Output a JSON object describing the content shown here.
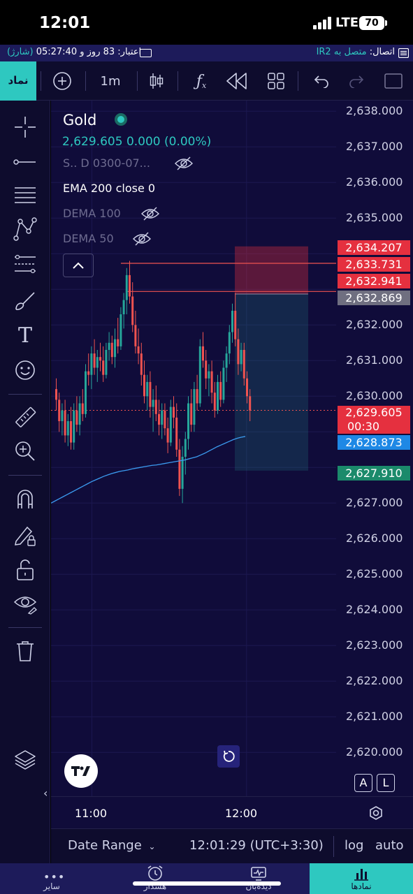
{
  "status_bar": {
    "time": "12:01",
    "network": "LTE",
    "battery": "70"
  },
  "info_bar": {
    "connection_label": "اتصال:",
    "connection_value": "متصل به IR2",
    "credit_label": "اعتبار:",
    "credit_value": "83 روز و 05:27:40",
    "charge_link": "(شارژ)"
  },
  "toolbar": {
    "symbol_button": "نماد",
    "interval": "1m",
    "icons": [
      "plus-circle-icon",
      "candles-icon",
      "fx-icon",
      "rewind-icon",
      "layout-icon",
      "undo-icon",
      "redo-icon",
      "fullscreen-icon"
    ]
  },
  "legend": {
    "symbol": "Gold",
    "price": "2,629.605",
    "change": "0.000 (0.00%)",
    "indicators": [
      {
        "label": "S.. D 0300-07...",
        "hidden": true
      },
      {
        "label": "EMA 200 close 0",
        "hidden": false
      },
      {
        "label": "DEMA 100",
        "hidden": true
      },
      {
        "label": "DEMA 50",
        "hidden": true
      }
    ]
  },
  "price_axis": {
    "ticks": [
      "2,638.000",
      "2,637.000",
      "2,636.000",
      "2,635.000",
      "2,632.000",
      "2,631.000",
      "2,630.000",
      "2,627.000",
      "2,626.000",
      "2,625.000",
      "2,624.000",
      "2,623.000",
      "2,622.000",
      "2,621.000",
      "2,620.000"
    ],
    "badges": [
      {
        "value": "2,634.207",
        "color": "#e5303f"
      },
      {
        "value": "2,633.731",
        "color": "#e5303f"
      },
      {
        "value": "2,632.941",
        "color": "#e5303f"
      },
      {
        "value": "2,632.869",
        "color": "#6f6f80"
      },
      {
        "value": "2,629.605",
        "sub": "00:30",
        "color": "#e5303f"
      },
      {
        "value": "2,628.873",
        "color": "#1e88e5"
      },
      {
        "value": "2,627.910",
        "color": "#1b8a6b"
      }
    ],
    "scale_buttons": [
      "A",
      "L"
    ]
  },
  "time_axis": {
    "ticks": [
      "11:00",
      "12:00"
    ]
  },
  "bottom_bar": {
    "date_range": "Date Range",
    "clock": "12:01:29 (UTC+3:30)",
    "log": "log",
    "auto": "auto"
  },
  "nav": [
    {
      "label": "سایر",
      "icon": "more-icon"
    },
    {
      "label": "هشدار",
      "icon": "alarm-icon"
    },
    {
      "label": "دیده‌بان",
      "icon": "monitor-icon"
    },
    {
      "label": "نمادها",
      "icon": "chart-bars-icon",
      "active": true
    }
  ],
  "colors": {
    "accent": "#2ec8c0",
    "bull": "#26a69a",
    "bear": "#ef5350",
    "ema": "#3b9bf0",
    "background": "#100c3a"
  },
  "chart_data": {
    "type": "candlestick",
    "symbol": "Gold",
    "interval": "1m",
    "last": 2629.605,
    "ema200_last": 2628.873,
    "ylim": [
      2619.6,
      2638.3
    ],
    "position": {
      "stop": 2634.207,
      "entry": 2632.869,
      "target": 2627.91
    },
    "lines": [
      2633.731,
      2632.941
    ],
    "x_ticks": [
      "11:00",
      "12:00"
    ],
    "ohlc": [
      [
        2630.2,
        2630.5,
        2629.6,
        2629.9
      ],
      [
        2629.9,
        2630.1,
        2629.0,
        2629.3
      ],
      [
        2629.3,
        2629.8,
        2628.9,
        2629.6
      ],
      [
        2629.6,
        2629.9,
        2628.7,
        2628.9
      ],
      [
        2628.9,
        2629.5,
        2628.6,
        2629.3
      ],
      [
        2629.3,
        2629.7,
        2628.5,
        2628.7
      ],
      [
        2628.7,
        2629.8,
        2628.5,
        2629.6
      ],
      [
        2629.6,
        2630.0,
        2629.0,
        2629.2
      ],
      [
        2629.2,
        2630.0,
        2628.9,
        2629.8
      ],
      [
        2629.8,
        2630.2,
        2629.3,
        2629.5
      ],
      [
        2629.5,
        2630.9,
        2629.4,
        2630.7
      ],
      [
        2630.7,
        2631.2,
        2630.3,
        2630.6
      ],
      [
        2630.6,
        2631.4,
        2630.2,
        2631.2
      ],
      [
        2631.2,
        2631.6,
        2630.6,
        2630.8
      ],
      [
        2630.8,
        2631.3,
        2630.4,
        2631.1
      ],
      [
        2631.1,
        2631.5,
        2630.7,
        2631.0
      ],
      [
        2631.0,
        2631.4,
        2630.4,
        2630.6
      ],
      [
        2630.6,
        2631.5,
        2630.5,
        2631.3
      ],
      [
        2631.3,
        2631.8,
        2631.0,
        2631.5
      ],
      [
        2631.5,
        2631.7,
        2630.9,
        2631.1
      ],
      [
        2631.1,
        2631.9,
        2630.8,
        2631.6
      ],
      [
        2631.6,
        2632.2,
        2631.2,
        2631.4
      ],
      [
        2631.4,
        2632.5,
        2631.3,
        2632.3
      ],
      [
        2632.3,
        2632.9,
        2631.9,
        2632.7
      ],
      [
        2632.7,
        2633.6,
        2632.3,
        2633.4
      ],
      [
        2633.4,
        2633.8,
        2632.6,
        2632.8
      ],
      [
        2632.8,
        2633.2,
        2631.8,
        2632.0
      ],
      [
        2632.0,
        2632.4,
        2631.2,
        2631.4
      ],
      [
        2631.4,
        2631.9,
        2630.9,
        2631.2
      ],
      [
        2631.2,
        2631.5,
        2630.3,
        2630.6
      ],
      [
        2630.6,
        2631.0,
        2629.8,
        2630.0
      ],
      [
        2630.0,
        2630.6,
        2629.6,
        2630.4
      ],
      [
        2630.4,
        2630.7,
        2629.4,
        2629.7
      ],
      [
        2629.7,
        2630.2,
        2629.0,
        2629.9
      ],
      [
        2629.9,
        2630.3,
        2629.3,
        2629.5
      ],
      [
        2629.5,
        2629.9,
        2628.9,
        2629.2
      ],
      [
        2629.2,
        2629.8,
        2628.8,
        2629.6
      ],
      [
        2629.6,
        2629.8,
        2628.9,
        2629.1
      ],
      [
        2629.1,
        2629.4,
        2628.4,
        2628.7
      ],
      [
        2628.7,
        2629.9,
        2628.6,
        2629.7
      ],
      [
        2629.7,
        2630.0,
        2629.1,
        2629.4
      ],
      [
        2629.4,
        2629.8,
        2628.3,
        2628.5
      ],
      [
        2628.5,
        2628.8,
        2627.2,
        2627.4
      ],
      [
        2627.4,
        2628.6,
        2627.0,
        2628.3
      ],
      [
        2628.3,
        2629.0,
        2627.8,
        2628.8
      ],
      [
        2628.8,
        2630.0,
        2628.5,
        2629.8
      ],
      [
        2629.8,
        2630.2,
        2629.0,
        2629.2
      ],
      [
        2629.2,
        2630.4,
        2629.0,
        2630.2
      ],
      [
        2630.2,
        2630.6,
        2629.6,
        2629.8
      ],
      [
        2629.8,
        2631.6,
        2629.7,
        2631.4
      ],
      [
        2631.4,
        2631.8,
        2630.8,
        2631.0
      ],
      [
        2631.0,
        2631.3,
        2630.2,
        2630.5
      ],
      [
        2630.5,
        2630.9,
        2630.0,
        2630.7
      ],
      [
        2630.7,
        2631.0,
        2629.8,
        2630.1
      ],
      [
        2630.1,
        2630.4,
        2629.4,
        2629.6
      ],
      [
        2629.6,
        2630.6,
        2629.5,
        2630.4
      ],
      [
        2630.4,
        2630.7,
        2629.7,
        2629.9
      ],
      [
        2629.9,
        2631.0,
        2629.8,
        2630.8
      ],
      [
        2630.8,
        2631.4,
        2630.4,
        2631.2
      ],
      [
        2631.2,
        2632.0,
        2630.9,
        2631.8
      ],
      [
        2631.8,
        2632.6,
        2631.5,
        2632.4
      ],
      [
        2632.4,
        2632.9,
        2631.4,
        2631.6
      ],
      [
        2631.6,
        2631.9,
        2630.6,
        2630.9
      ],
      [
        2630.9,
        2631.5,
        2630.7,
        2631.3
      ],
      [
        2631.3,
        2631.5,
        2630.3,
        2630.5
      ],
      [
        2630.5,
        2630.7,
        2629.8,
        2630.0
      ],
      [
        2630.0,
        2630.2,
        2629.3,
        2629.6
      ]
    ],
    "ema_values": [
      2627.0,
      2627.06,
      2627.12,
      2627.18,
      2627.24,
      2627.3,
      2627.36,
      2627.42,
      2627.48,
      2627.54,
      2627.6,
      2627.65,
      2627.7,
      2627.75,
      2627.79,
      2627.83,
      2627.86,
      2627.89,
      2627.91,
      2627.93,
      2627.96,
      2627.98,
      2628.0,
      2628.02,
      2628.04,
      2628.06,
      2628.07,
      2628.09,
      2628.11,
      2628.13,
      2628.15,
      2628.17,
      2628.19,
      2628.21,
      2628.24,
      2628.27,
      2628.3,
      2628.35,
      2628.4,
      2628.46,
      2628.52,
      2628.58,
      2628.63,
      2628.68,
      2628.73,
      2628.78,
      2628.82,
      2628.85,
      2628.87
    ]
  }
}
